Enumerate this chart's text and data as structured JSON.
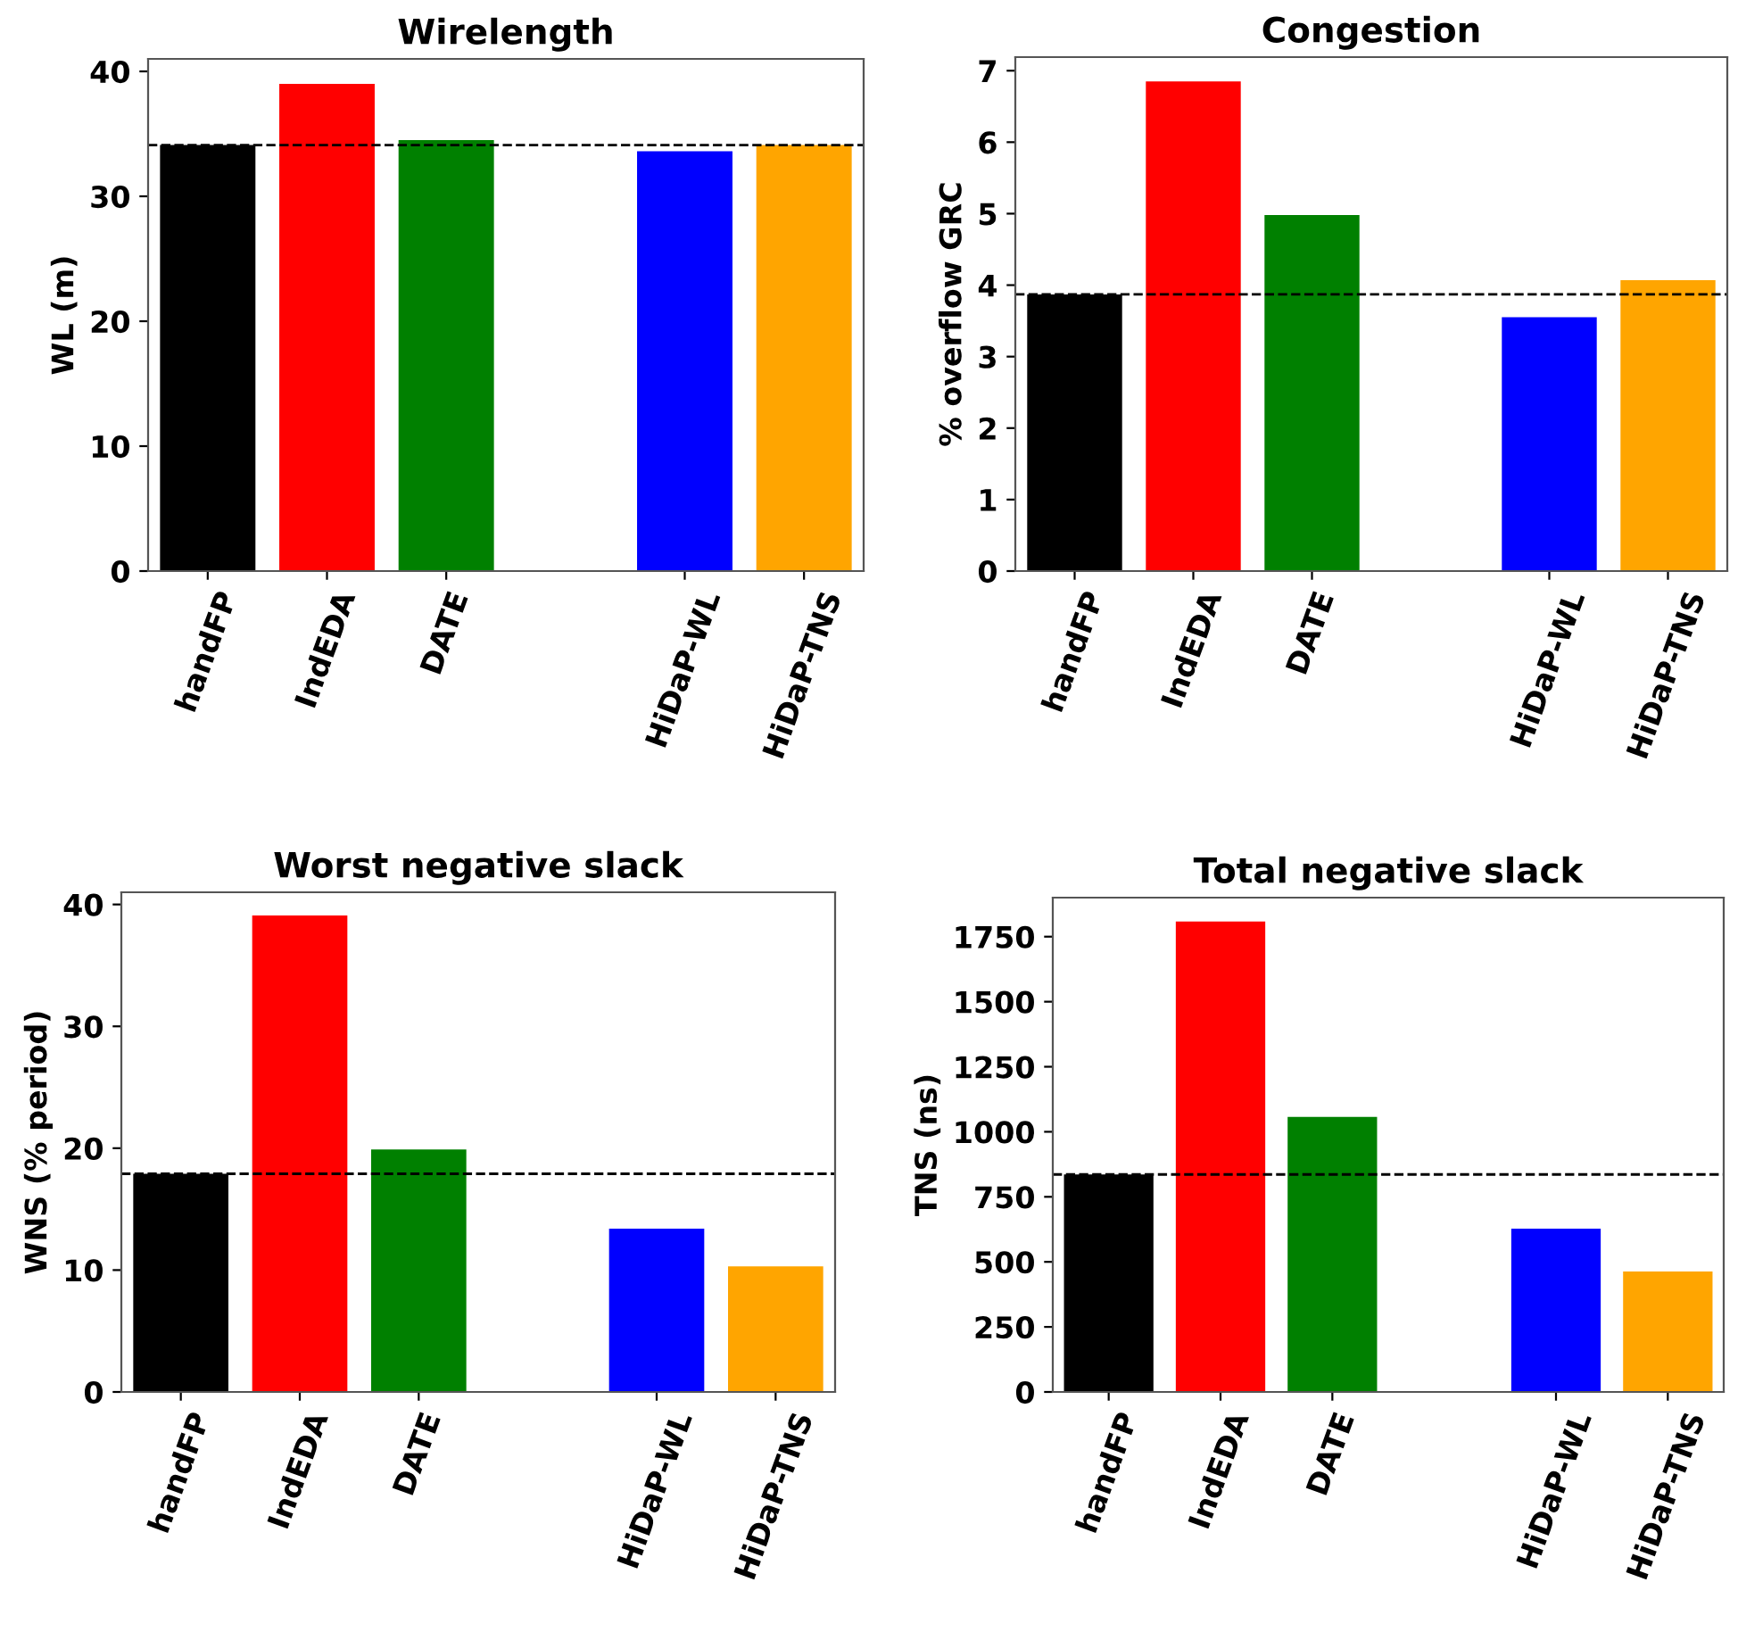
{
  "chart_data": [
    {
      "type": "bar",
      "title": "Wirelength",
      "ylabel": "WL (m)",
      "categories": [
        "handFP",
        "IndEDA",
        "DATE",
        null,
        "HiDaP-WL",
        "HiDaP-TNS"
      ],
      "values": [
        34.1,
        39.0,
        34.5,
        null,
        33.6,
        34.1
      ],
      "colors": [
        "#000000",
        "#ff0000",
        "#008000",
        null,
        "#0000ff",
        "#ffa500"
      ],
      "ylim": [
        0,
        41
      ],
      "yticks": [
        0,
        10,
        20,
        30,
        40
      ],
      "ref_lines": [
        {
          "axis": "y",
          "value": 34.1,
          "color": "#000000",
          "line_style": "dashed"
        }
      ],
      "grid": false,
      "legend": false
    },
    {
      "type": "bar",
      "title": "Congestion",
      "ylabel": "% overflow GRC",
      "categories": [
        "handFP",
        "IndEDA",
        "DATE",
        null,
        "HiDaP-WL",
        "HiDaP-TNS"
      ],
      "values": [
        3.87,
        6.85,
        4.98,
        null,
        3.55,
        4.07
      ],
      "colors": [
        "#000000",
        "#ff0000",
        "#008000",
        null,
        "#0000ff",
        "#ffa500"
      ],
      "ylim": [
        0,
        7.19
      ],
      "yticks": [
        0,
        1,
        2,
        3,
        4,
        5,
        6,
        7
      ],
      "ref_lines": [
        {
          "axis": "y",
          "value": 3.87,
          "color": "#000000",
          "line_style": "dashed"
        }
      ],
      "grid": false,
      "legend": false
    },
    {
      "type": "bar",
      "title": "Worst negative slack",
      "ylabel": "WNS (% period)",
      "categories": [
        "handFP",
        "IndEDA",
        "DATE",
        null,
        "HiDaP-WL",
        "HiDaP-TNS"
      ],
      "values": [
        17.9,
        39.1,
        19.9,
        null,
        13.4,
        10.3
      ],
      "colors": [
        "#000000",
        "#ff0000",
        "#008000",
        null,
        "#0000ff",
        "#ffa500"
      ],
      "ylim": [
        0,
        41
      ],
      "yticks": [
        0,
        10,
        20,
        30,
        40
      ],
      "ref_lines": [
        {
          "axis": "y",
          "value": 17.9,
          "color": "#000000",
          "line_style": "dashed"
        }
      ],
      "grid": false,
      "legend": false
    },
    {
      "type": "bar",
      "title": "Total negative slack",
      "ylabel": "TNS (ns)",
      "categories": [
        "handFP",
        "IndEDA",
        "DATE",
        null,
        "HiDaP-WL",
        "HiDaP-TNS"
      ],
      "values": [
        836,
        1808,
        1057,
        null,
        628,
        463
      ],
      "colors": [
        "#000000",
        "#ff0000",
        "#008000",
        null,
        "#0000ff",
        "#ffa500"
      ],
      "ylim": [
        0,
        1900
      ],
      "yticks": [
        0,
        250,
        500,
        750,
        1000,
        1250,
        1500,
        1750
      ],
      "ref_lines": [
        {
          "axis": "y",
          "value": 836,
          "color": "#000000",
          "line_style": "dashed"
        }
      ],
      "grid": false,
      "legend": false
    }
  ]
}
